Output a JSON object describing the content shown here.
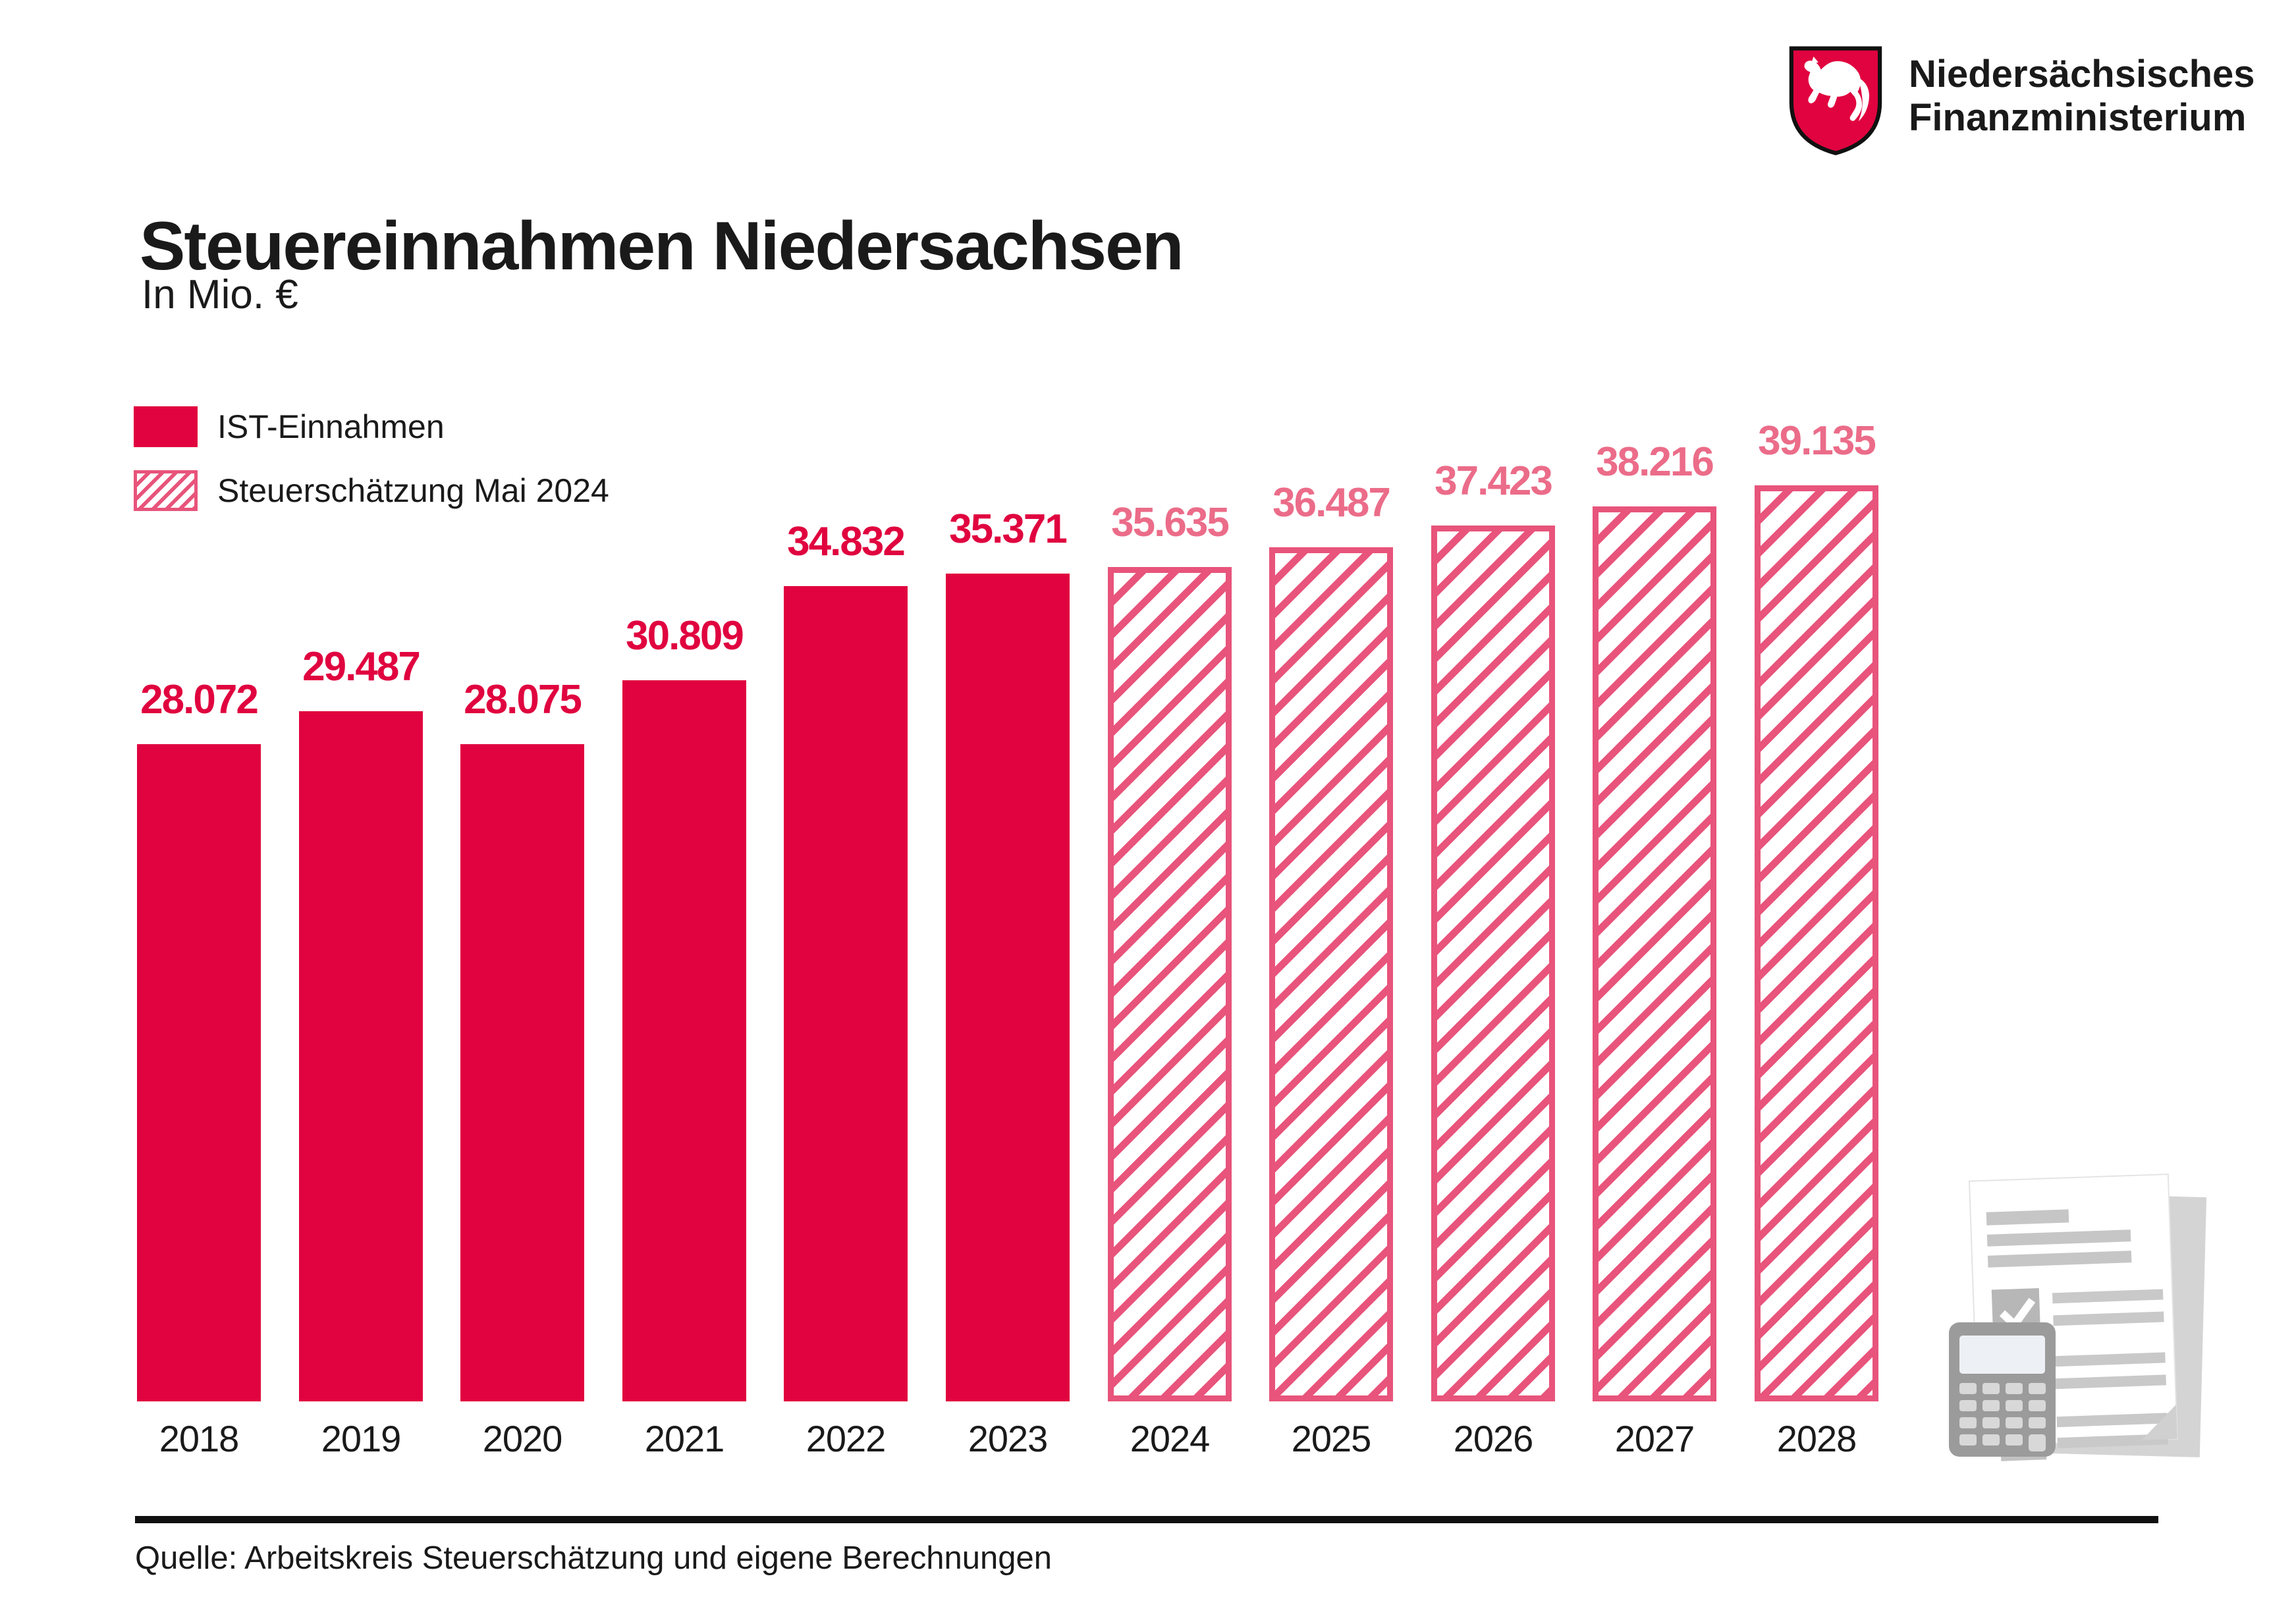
{
  "header": {
    "title": "Steuereinnahmen Niedersachsen",
    "subtitle": "In Mio. €"
  },
  "logo": {
    "org_line1": "Niedersächsisches",
    "org_line2": "Finanzministerium"
  },
  "legend": [
    {
      "label": "IST-Einnahmen",
      "style": "solid"
    },
    {
      "label": "Steuerschätzung Mai 2024",
      "style": "hatched"
    }
  ],
  "chart_data": {
    "type": "bar",
    "title": "Steuereinnahmen Niedersachsen",
    "ylabel": "In Mio. €",
    "xlabel": "",
    "ylim": [
      0,
      40000
    ],
    "gridlines": false,
    "legend_position": "upper-left",
    "categories": [
      "2018",
      "2019",
      "2020",
      "2021",
      "2022",
      "2023",
      "2024",
      "2025",
      "2026",
      "2027",
      "2028"
    ],
    "series": [
      {
        "name": "IST-Einnahmen",
        "style": "solid-red",
        "values": [
          28072,
          29487,
          28075,
          30809,
          34832,
          35371,
          null,
          null,
          null,
          null,
          null
        ]
      },
      {
        "name": "Steuerschätzung Mai 2024",
        "style": "pink-diagonal-hatch",
        "values": [
          null,
          null,
          null,
          null,
          null,
          null,
          35635,
          36487,
          37423,
          38216,
          39135
        ]
      }
    ],
    "bars": [
      {
        "year": "2018",
        "value": 28072,
        "label": "28.072",
        "series": "solid"
      },
      {
        "year": "2019",
        "value": 29487,
        "label": "29.487",
        "series": "solid"
      },
      {
        "year": "2020",
        "value": 28075,
        "label": "28.075",
        "series": "solid"
      },
      {
        "year": "2021",
        "value": 30809,
        "label": "30.809",
        "series": "solid"
      },
      {
        "year": "2022",
        "value": 34832,
        "label": "34.832",
        "series": "solid"
      },
      {
        "year": "2023",
        "value": 35371,
        "label": "35.371",
        "series": "solid"
      },
      {
        "year": "2024",
        "value": 35635,
        "label": "35.635",
        "series": "hatched"
      },
      {
        "year": "2025",
        "value": 36487,
        "label": "36.487",
        "series": "hatched"
      },
      {
        "year": "2026",
        "value": 37423,
        "label": "37.423",
        "series": "hatched"
      },
      {
        "year": "2027",
        "value": 38216,
        "label": "38.216",
        "series": "hatched"
      },
      {
        "year": "2028",
        "value": 39135,
        "label": "39.135",
        "series": "hatched"
      }
    ]
  },
  "source": {
    "text": "Quelle: Arbeitskreis Steuerschätzung und eigene Berechnungen"
  },
  "colors": {
    "ist_red": "#E0033F",
    "estimate_pink": "#E8547B",
    "estimate_label_pink": "#EB6C89",
    "text_black": "#1A1A1A",
    "illustration_gray": "#C8C8C8"
  },
  "icons": {
    "coat_of_arms": "lower-saxony-horse-shield",
    "decoration": "document-checklist-and-calculator"
  }
}
